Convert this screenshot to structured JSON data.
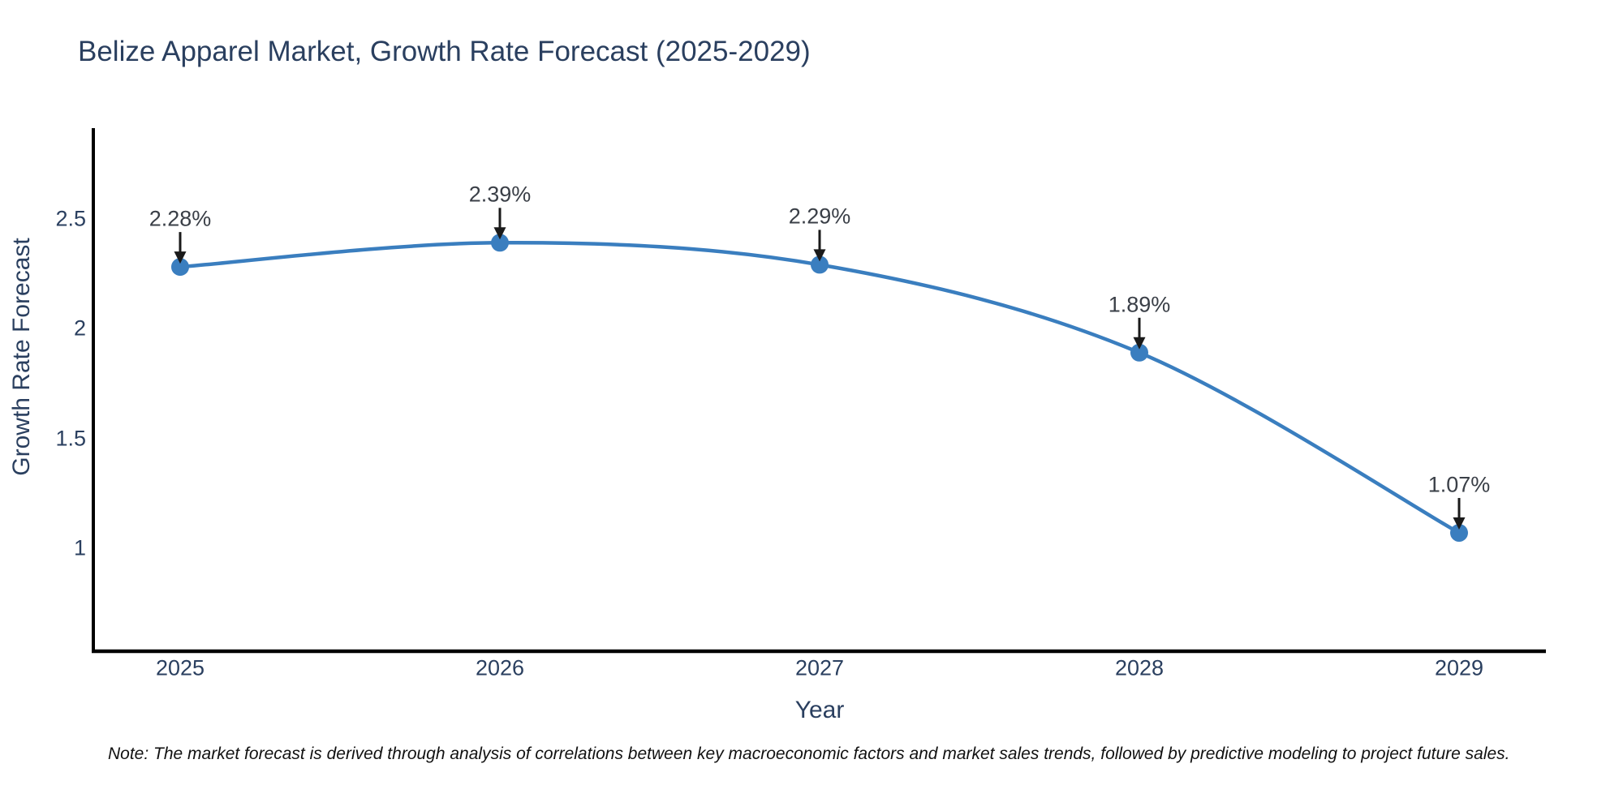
{
  "title": "Belize Apparel Market, Growth Rate Forecast (2025-2029)",
  "note": "Note: The market forecast is derived through analysis of correlations between key macroeconomic factors and market sales trends, followed by predictive modeling to project future sales.",
  "colors": {
    "line": "#3a7ebf",
    "marker": "#3a7ebf",
    "axis_line": "#000000",
    "title_text": "#2a3f5f",
    "tick_text": "#2a3f5f",
    "annotation_text": "#3a3f47",
    "arrow": "#1a1a1a",
    "note_text": "#111111",
    "background": "#ffffff"
  },
  "chart_data": {
    "type": "line",
    "title": "Belize Apparel Market, Growth Rate Forecast (2025-2029)",
    "xlabel": "Year",
    "ylabel": "Growth Rate Forecast",
    "x": [
      2025,
      2026,
      2027,
      2028,
      2029
    ],
    "values": [
      2.28,
      2.39,
      2.29,
      1.89,
      1.07
    ],
    "point_labels": [
      "2.28%",
      "2.39%",
      "2.29%",
      "1.89%",
      "1.07%"
    ],
    "x_ticks": [
      "2025",
      "2026",
      "2027",
      "2028",
      "2029"
    ],
    "y_ticks": [
      2.5,
      2,
      1.5,
      1
    ],
    "xlim": [
      2024.72,
      2029.27
    ],
    "ylim": [
      0.52,
      2.91
    ],
    "grid": false,
    "legend": false,
    "line_shape": "spline",
    "markers": true,
    "annotation_style": "label-with-down-arrow"
  }
}
